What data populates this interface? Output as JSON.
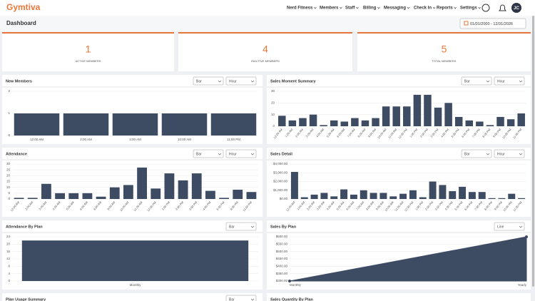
{
  "header": {
    "logo": "Gymtiva",
    "nav": [
      "Nerd Fitness",
      "Members",
      "Staff",
      "Billing",
      "Messaging",
      "Check In",
      "Reports",
      "Settings"
    ],
    "avatar": "JC"
  },
  "page_title": "Dashboard",
  "date_range": "01/01/2000 - 12/31/2026",
  "stats": [
    {
      "value": "1",
      "label": "ACTIVE MEMBERS"
    },
    {
      "value": "4",
      "label": "INACTIVE MEMBERS"
    },
    {
      "value": "5",
      "label": "TOTAL MEMBERS"
    }
  ],
  "chart_data": [
    {
      "type": "bar",
      "title": "New Members",
      "controls": [
        "Bar",
        "Hour"
      ],
      "categories": [
        "12:00 AM",
        "2:00 AM",
        "3:00 AM",
        "10:00 AM",
        "11:00 PM"
      ],
      "values": [
        1,
        1,
        1,
        1,
        1
      ],
      "ylim": [
        0,
        2
      ],
      "yticks": [
        0,
        1,
        2
      ],
      "color": "#3d4b63",
      "grid": true
    },
    {
      "type": "bar",
      "title": "Sales Moment Summary",
      "controls": [
        "Bar",
        "Hour"
      ],
      "categories": [
        "12:00 AM",
        "1:00 AM",
        "2:00 AM",
        "3:00 AM",
        "4:00 AM",
        "5:00 AM",
        "6:00 AM",
        "7:00 AM",
        "8:00 AM",
        "9:00 AM",
        "10:00 AM",
        "11:00 AM",
        "12:00 PM",
        "1:00 PM",
        "2:00 PM",
        "3:00 PM",
        "4:00 PM",
        "5:00 PM",
        "6:00 PM",
        "7:00 PM",
        "8:00 PM",
        "9:00 PM",
        "10:00 PM",
        "11:00 PM"
      ],
      "values": [
        9,
        5,
        7,
        10,
        1,
        5,
        4,
        7,
        5,
        7,
        17,
        17,
        17,
        27,
        27,
        16,
        20,
        8,
        5,
        4,
        1,
        8,
        6,
        11
      ],
      "ylim": [
        0,
        30
      ],
      "yticks": [
        0,
        10,
        20,
        30
      ],
      "color": "#3d4b63",
      "grid": true
    },
    {
      "type": "bar",
      "title": "Attendance",
      "controls": [
        "Bar",
        "Hour"
      ],
      "categories": [
        "12:00 AM",
        "2:00 AM",
        "3:00 AM",
        "4:00 AM",
        "5:00 AM",
        "6:00 AM",
        "8:00 AM",
        "9:00 AM",
        "10:00 AM",
        "11:00 AM",
        "12:00 PM",
        "1:00 PM",
        "2:00 PM",
        "3:00 PM",
        "4:00 PM",
        "5:00 PM",
        "8:00 PM",
        "11:00 PM"
      ],
      "values": [
        1,
        1,
        13,
        5,
        5,
        5,
        2,
        10,
        12,
        27,
        9,
        22,
        16,
        22,
        7,
        1,
        8,
        6
      ],
      "ylim": [
        0,
        30
      ],
      "yticks": [
        0,
        5,
        10,
        15,
        20,
        25,
        30
      ],
      "color": "#3d4b63",
      "grid": true
    },
    {
      "type": "bar",
      "title": "Sales Detail",
      "controls": [
        "Bar",
        "Hour"
      ],
      "categories": [
        "12:00 AM",
        "1:00 AM",
        "2:00 AM",
        "3:00 AM",
        "4:00 AM",
        "5:00 AM",
        "6:00 AM",
        "7:00 AM",
        "8:00 AM",
        "9:00 AM",
        "10:00 AM",
        "11:00 AM",
        "12:00 PM",
        "1:00 PM",
        "2:00 PM",
        "3:00 PM",
        "4:00 PM",
        "5:00 PM",
        "6:00 PM",
        "7:00 PM",
        "8:00 PM",
        "9:00 PM",
        "10:00 PM",
        "11:00 PM"
      ],
      "values": [
        3100,
        200,
        500,
        700,
        300,
        1100,
        500,
        1000,
        700,
        700,
        300,
        600,
        1000,
        200,
        2000,
        1600,
        900,
        1400,
        800,
        800,
        100,
        100,
        600,
        100
      ],
      "ylim": [
        0,
        4000
      ],
      "yticks": [
        {
          "value": 0,
          "label": "$0.00"
        },
        {
          "value": 1000,
          "label": "$1,000.00"
        },
        {
          "value": 2000,
          "label": "$2,000.00"
        },
        {
          "value": 3000,
          "label": "$3,000.00"
        },
        {
          "value": 4000,
          "label": "$4,000.00"
        }
      ],
      "color": "#3d4b63",
      "grid": true
    },
    {
      "type": "bar",
      "title": "Attendance By Plan",
      "controls": [
        "Bar"
      ],
      "categories": [
        "Monthly"
      ],
      "values": [
        22
      ],
      "ylim": [
        0,
        24
      ],
      "yticks": [
        0,
        4,
        8,
        12,
        16,
        20,
        24
      ],
      "color": "#3d4b63",
      "grid": true
    },
    {
      "type": "line",
      "title": "Sales By Plan",
      "controls": [
        "Line"
      ],
      "categories": [
        "Monthly",
        "Yearly"
      ],
      "values": [
        300,
        600
      ],
      "ylim": [
        300,
        600
      ],
      "yticks": [
        {
          "value": 300,
          "label": "$300.00"
        },
        {
          "value": 350,
          "label": "$350.00"
        },
        {
          "value": 400,
          "label": "$400.00"
        },
        {
          "value": 450,
          "label": "$450.00"
        },
        {
          "value": 500,
          "label": "$500.00"
        },
        {
          "value": 550,
          "label": "$550.00"
        },
        {
          "value": 600,
          "label": "$600.00"
        }
      ],
      "color": "#3d4b63",
      "grid": true
    }
  ],
  "more_panels": [
    {
      "title": "Plan Usage Summary",
      "control": "Bar"
    },
    {
      "title": "Sales Quantity By Plan"
    }
  ]
}
